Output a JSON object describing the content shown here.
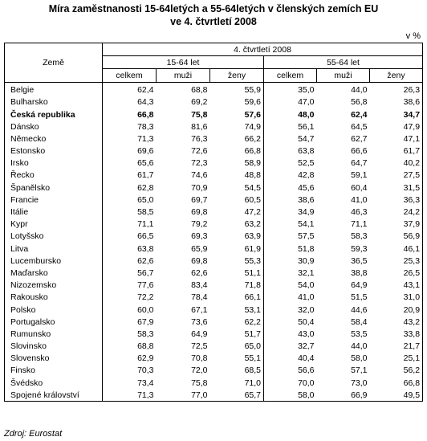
{
  "title_line1": "Míra zaměstnanosti 15-64letých a 55-64letých v členských zemích EU",
  "title_line2": "ve 4. čtvrtletí 2008",
  "unit": "v %",
  "header": {
    "country": "Země",
    "period": "4. čtvrtletí 2008",
    "group1": "15-64 let",
    "group2": "55-64 let",
    "total": "celkem",
    "men": "muži",
    "women": "ženy"
  },
  "rows": [
    {
      "country": "Belgie",
      "v": [
        "62,4",
        "68,8",
        "55,9",
        "35,0",
        "44,0",
        "26,3"
      ]
    },
    {
      "country": "Bulharsko",
      "v": [
        "64,3",
        "69,2",
        "59,6",
        "47,0",
        "56,8",
        "38,6"
      ]
    },
    {
      "country": "Česká republika",
      "v": [
        "66,8",
        "75,8",
        "57,6",
        "48,0",
        "62,4",
        "34,7"
      ],
      "bold": true
    },
    {
      "country": "Dánsko",
      "v": [
        "78,3",
        "81,6",
        "74,9",
        "56,1",
        "64,5",
        "47,9"
      ]
    },
    {
      "country": "Německo",
      "v": [
        "71,3",
        "76,3",
        "66,2",
        "54,7",
        "62,7",
        "47,1"
      ]
    },
    {
      "country": "Estonsko",
      "v": [
        "69,6",
        "72,6",
        "66,8",
        "63,8",
        "66,6",
        "61,7"
      ]
    },
    {
      "country": "Irsko",
      "v": [
        "65,6",
        "72,3",
        "58,9",
        "52,5",
        "64,7",
        "40,2"
      ]
    },
    {
      "country": "Řecko",
      "v": [
        "61,7",
        "74,6",
        "48,8",
        "42,8",
        "59,1",
        "27,5"
      ]
    },
    {
      "country": "Španělsko",
      "v": [
        "62,8",
        "70,9",
        "54,5",
        "45,6",
        "60,4",
        "31,5"
      ]
    },
    {
      "country": "Francie",
      "v": [
        "65,0",
        "69,7",
        "60,5",
        "38,6",
        "41,0",
        "36,3"
      ]
    },
    {
      "country": "Itálie",
      "v": [
        "58,5",
        "69,8",
        "47,2",
        "34,9",
        "46,3",
        "24,2"
      ]
    },
    {
      "country": "Kypr",
      "v": [
        "71,1",
        "79,2",
        "63,2",
        "54,1",
        "71,1",
        "37,9"
      ]
    },
    {
      "country": "Lotyšsko",
      "v": [
        "66,5",
        "69,3",
        "63,9",
        "57,5",
        "58,3",
        "56,9"
      ]
    },
    {
      "country": "Litva",
      "v": [
        "63,8",
        "65,9",
        "61,9",
        "51,8",
        "59,3",
        "46,1"
      ]
    },
    {
      "country": "Lucembursko",
      "v": [
        "62,6",
        "69,8",
        "55,3",
        "30,9",
        "36,5",
        "25,3"
      ]
    },
    {
      "country": "Maďarsko",
      "v": [
        "56,7",
        "62,6",
        "51,1",
        "32,1",
        "38,8",
        "26,5"
      ]
    },
    {
      "country": "Nizozemsko",
      "v": [
        "77,6",
        "83,4",
        "71,8",
        "54,0",
        "64,9",
        "43,1"
      ]
    },
    {
      "country": "Rakousko",
      "v": [
        "72,2",
        "78,4",
        "66,1",
        "41,0",
        "51,5",
        "31,0"
      ]
    },
    {
      "country": "Polsko",
      "v": [
        "60,0",
        "67,1",
        "53,1",
        "32,0",
        "44,6",
        "20,9"
      ]
    },
    {
      "country": "Portugalsko",
      "v": [
        "67,9",
        "73,6",
        "62,2",
        "50,4",
        "58,4",
        "43,2"
      ]
    },
    {
      "country": "Rumunsko",
      "v": [
        "58,3",
        "64,9",
        "51,7",
        "43,0",
        "53,5",
        "33,8"
      ]
    },
    {
      "country": "Slovinsko",
      "v": [
        "68,8",
        "72,5",
        "65,0",
        "32,7",
        "44,0",
        "21,7"
      ]
    },
    {
      "country": "Slovensko",
      "v": [
        "62,9",
        "70,8",
        "55,1",
        "40,4",
        "58,0",
        "25,1"
      ]
    },
    {
      "country": "Finsko",
      "v": [
        "70,3",
        "72,0",
        "68,5",
        "56,6",
        "57,1",
        "56,2"
      ]
    },
    {
      "country": "Švédsko",
      "v": [
        "73,4",
        "75,8",
        "71,0",
        "70,0",
        "73,0",
        "66,8"
      ]
    },
    {
      "country": "Spojené království",
      "v": [
        "71,3",
        "77,0",
        "65,7",
        "58,0",
        "66,9",
        "49,5"
      ]
    }
  ],
  "source": "Zdroj: Eurostat"
}
